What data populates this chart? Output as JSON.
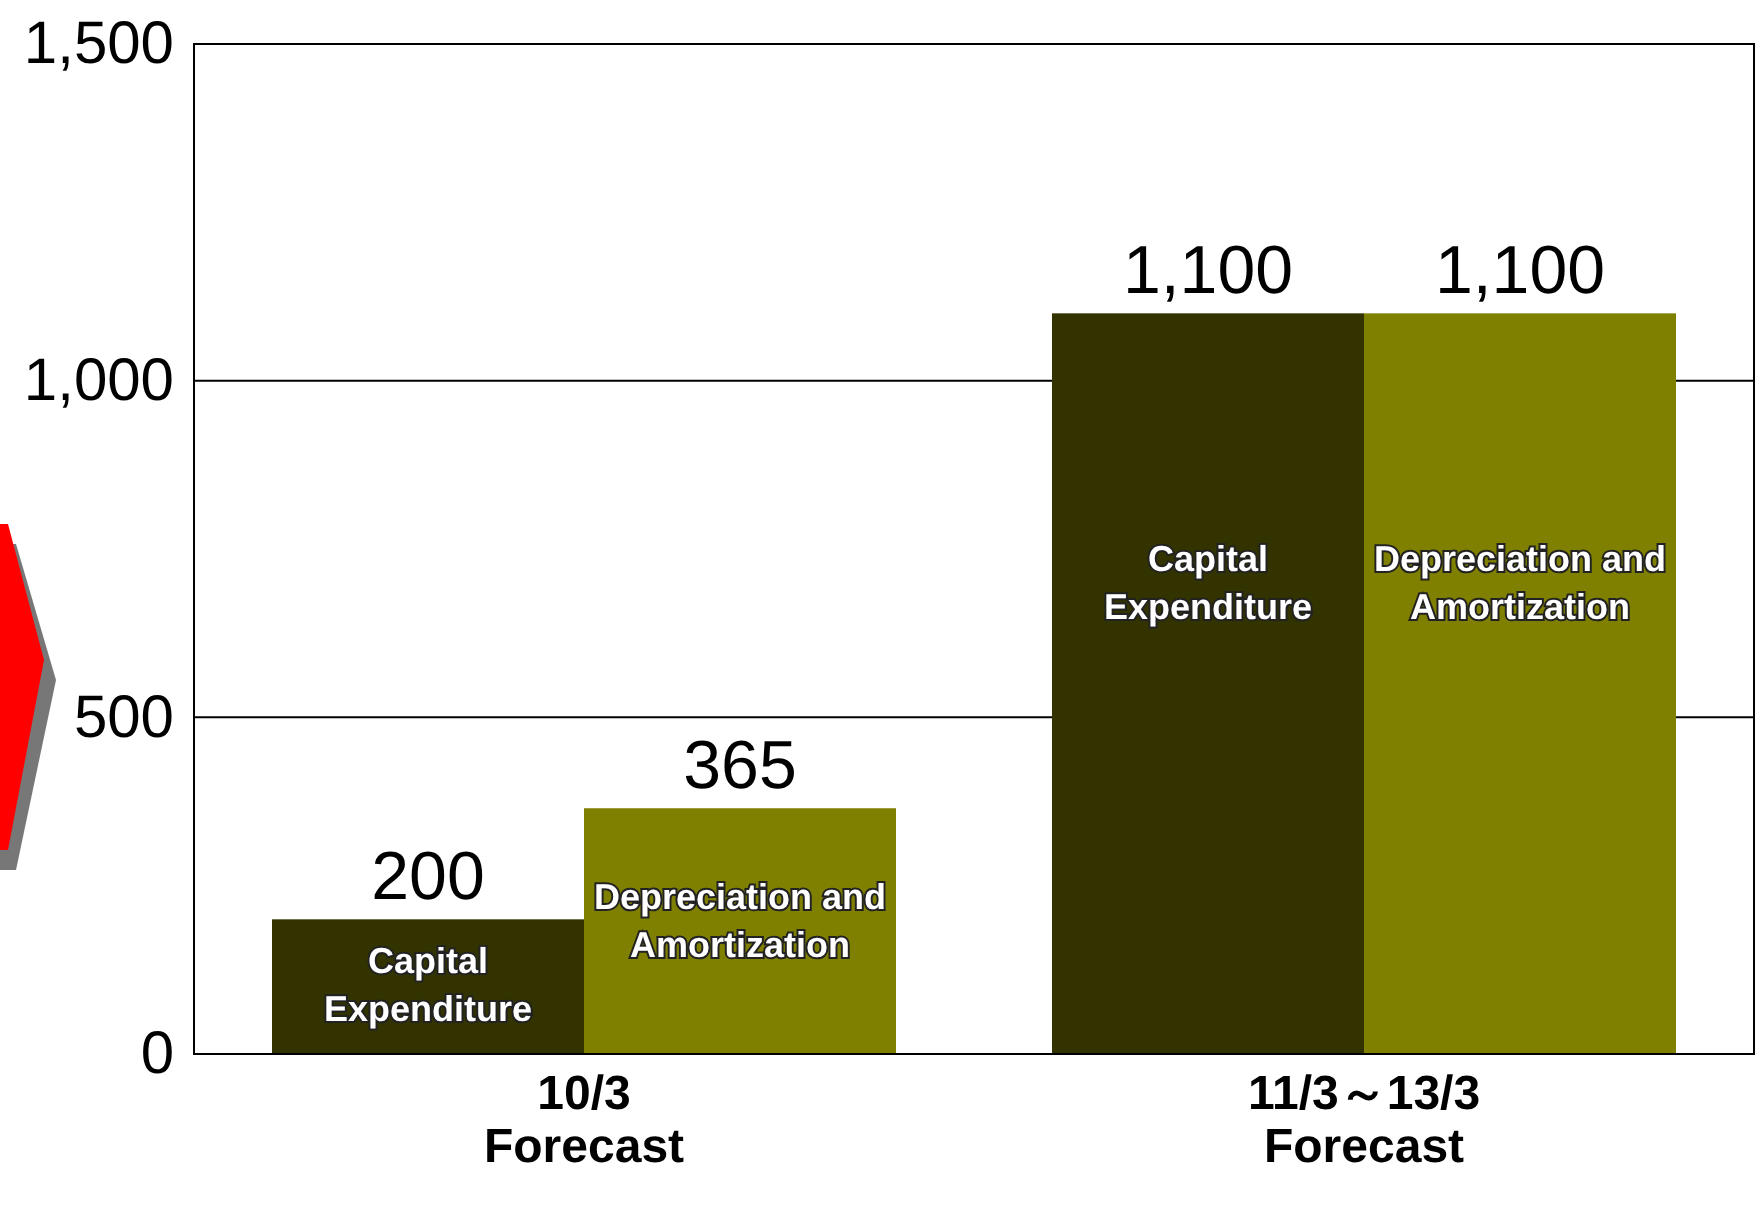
{
  "chart_data": {
    "type": "bar",
    "categories": [
      "10/3 Forecast",
      "11/3～13/3 Forecast"
    ],
    "series": [
      {
        "name": "Capital Expenditure",
        "color": "#333300",
        "values": [
          200,
          1100
        ],
        "value_labels": [
          "200",
          "1,100"
        ]
      },
      {
        "name": "Depreciation and Amortization",
        "color": "#808000",
        "values": [
          365,
          1100
        ],
        "value_labels": [
          "365",
          "1,100"
        ]
      }
    ],
    "ylim": [
      0,
      1500
    ],
    "yticks": [
      0,
      500,
      {
        "value": 1000,
        "label": "1,000"
      },
      {
        "value": 1500,
        "label": "1,500"
      }
    ],
    "grid": "y"
  }
}
